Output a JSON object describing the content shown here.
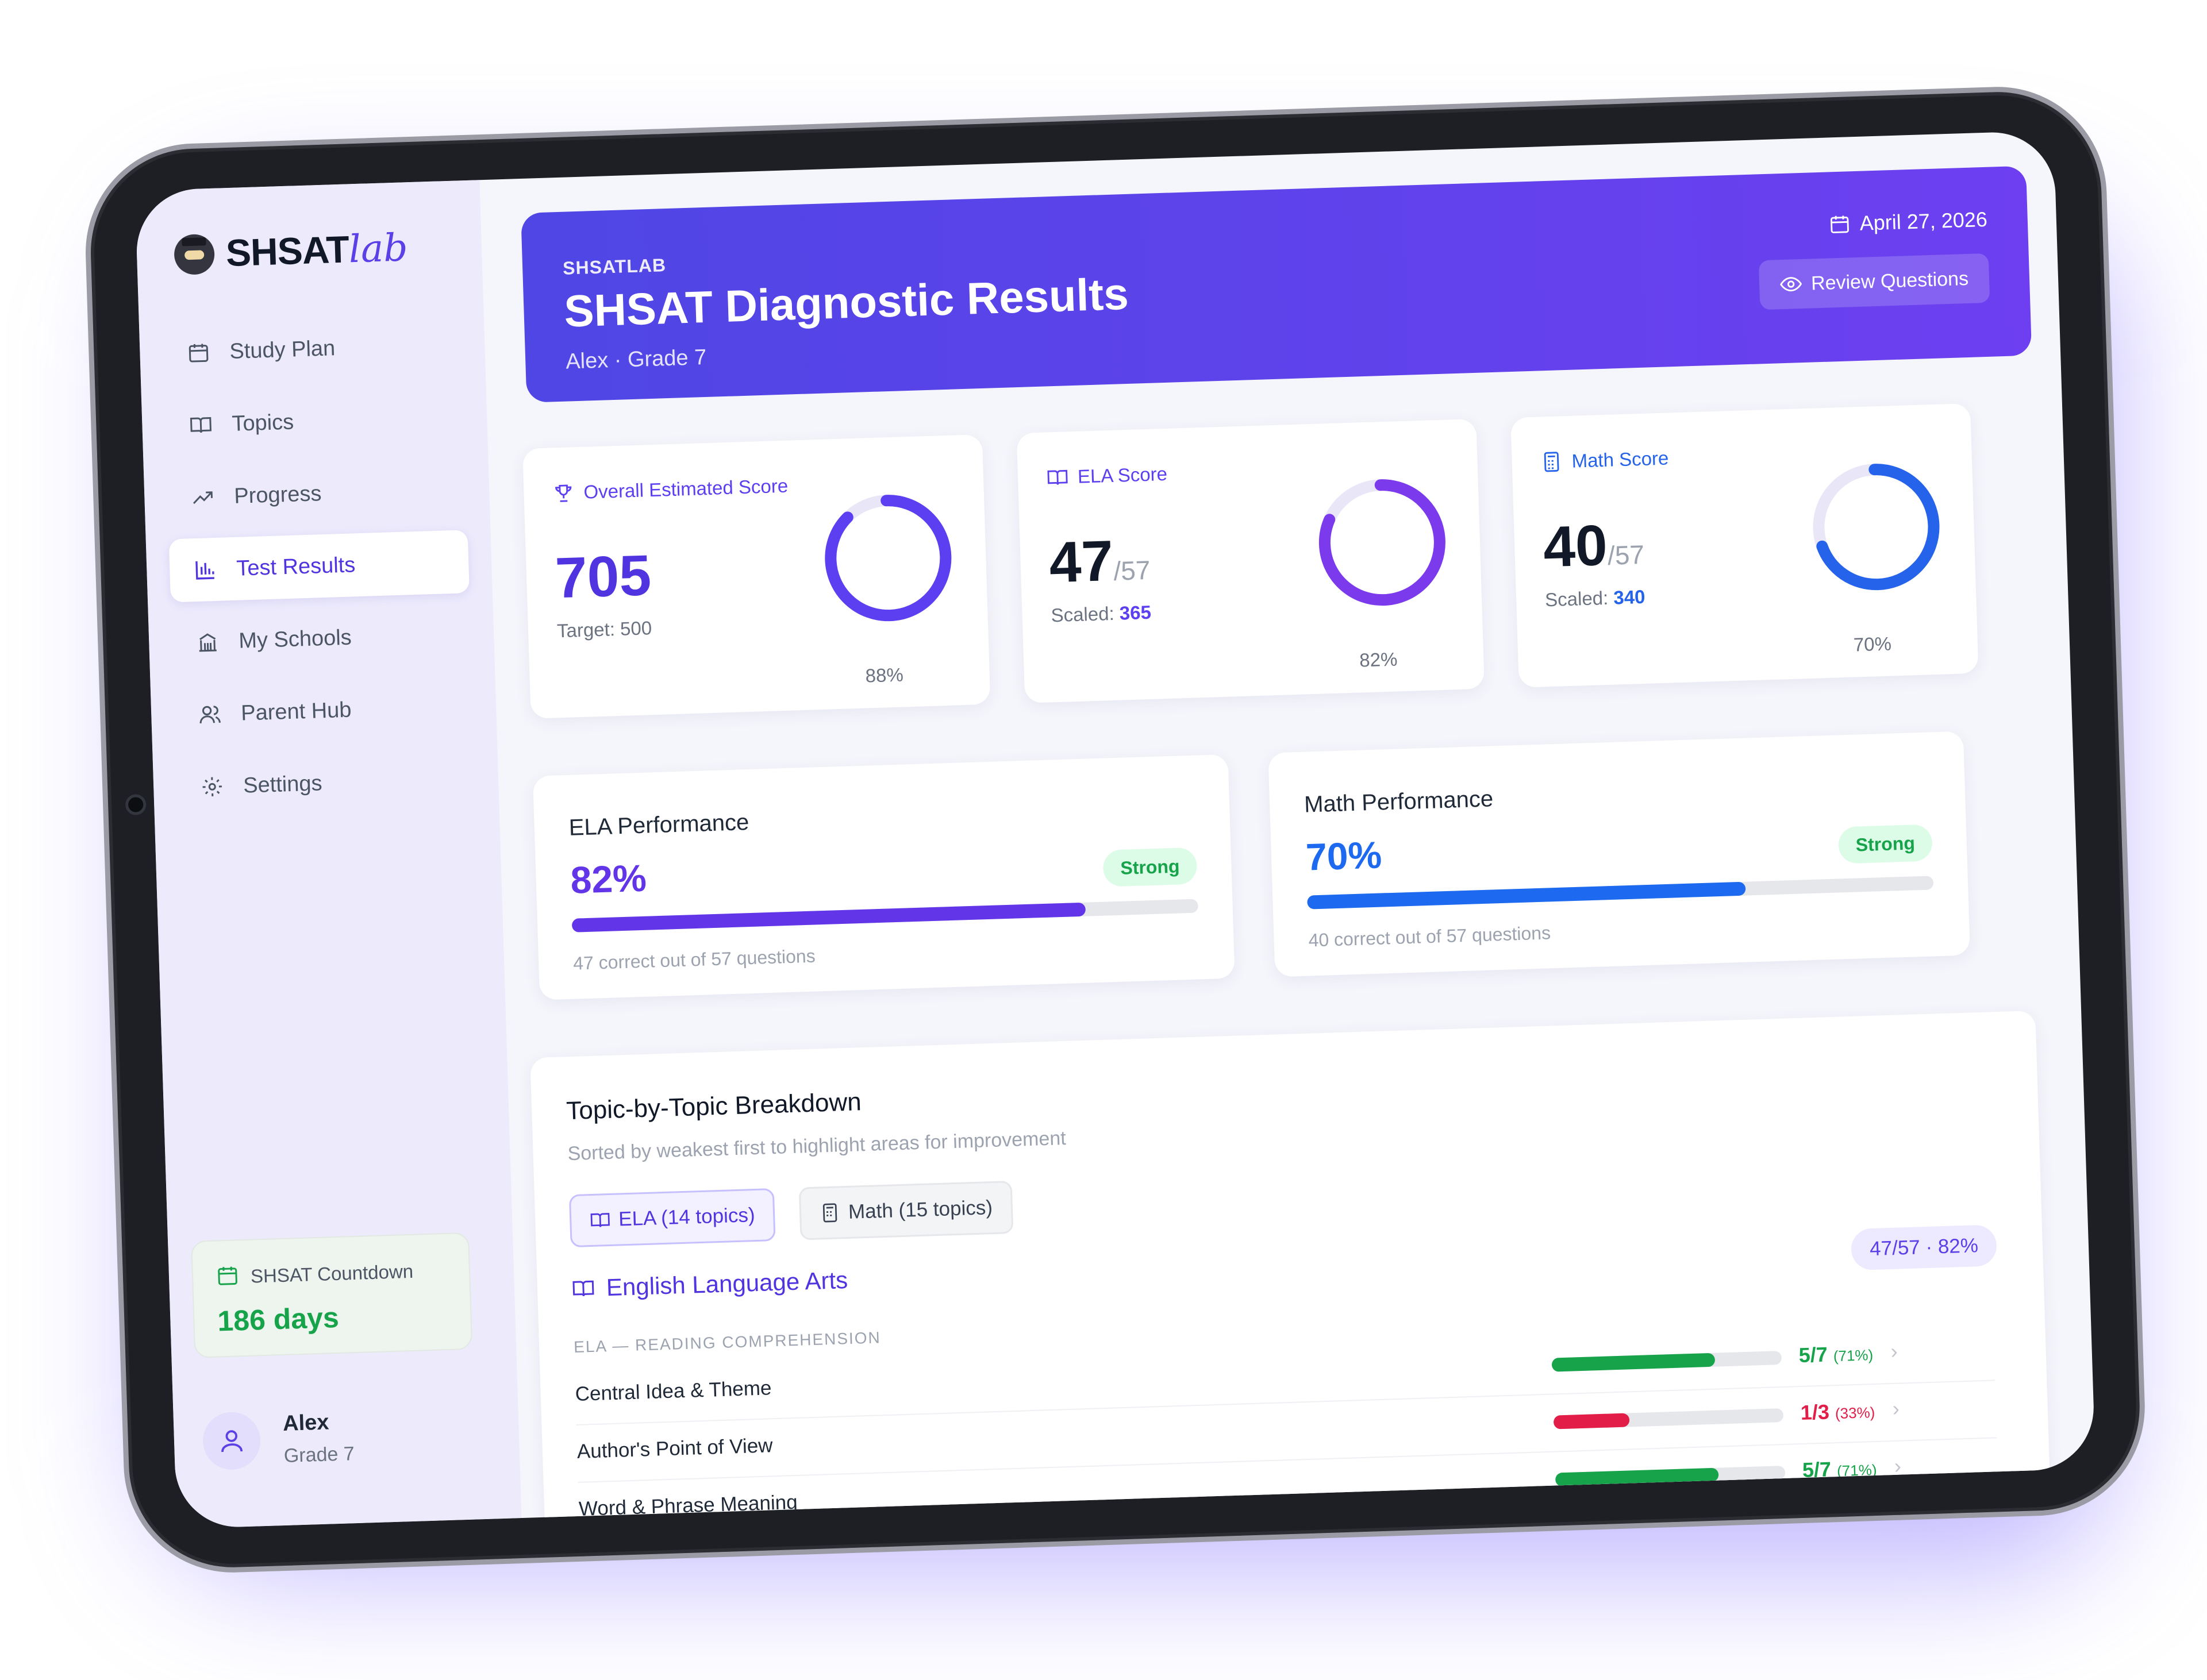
{
  "app": {
    "logo_text": "SHSAT",
    "logo_script": "lab"
  },
  "sidebar": {
    "items": [
      {
        "label": "Study Plan",
        "icon": "calendar-icon"
      },
      {
        "label": "Topics",
        "icon": "book-icon"
      },
      {
        "label": "Progress",
        "icon": "trend-icon"
      },
      {
        "label": "Test Results",
        "icon": "bar-chart-icon",
        "active": true
      },
      {
        "label": "My Schools",
        "icon": "school-icon"
      },
      {
        "label": "Parent Hub",
        "icon": "users-icon"
      },
      {
        "label": "Settings",
        "icon": "gear-icon"
      }
    ],
    "countdown": {
      "label": "SHSAT Countdown",
      "value": "186 days"
    },
    "user": {
      "name": "Alex",
      "grade": "Grade 7"
    }
  },
  "hero": {
    "kicker": "SHSATLAB",
    "title": "SHSAT Diagnostic Results",
    "subtitle": "Alex · Grade 7",
    "date": "April 27, 2026",
    "review_button": "Review Questions"
  },
  "scores": {
    "overall": {
      "title": "Overall Estimated Score",
      "value": "705",
      "foot_label": "Target:",
      "foot_value": "500",
      "pct": "88%",
      "fraction": 0.88,
      "color": "#5b3ff0"
    },
    "ela": {
      "title": "ELA Score",
      "value": "47",
      "out_of": "/57",
      "foot_label": "Scaled:",
      "foot_value": "365",
      "pct": "82%",
      "fraction": 0.82,
      "color": "#7c3aed"
    },
    "math": {
      "title": "Math Score",
      "value": "40",
      "out_of": "/57",
      "foot_label": "Scaled:",
      "foot_value": "340",
      "pct": "70%",
      "fraction": 0.7,
      "color": "#2563eb"
    }
  },
  "performance": {
    "ela": {
      "title": "ELA Performance",
      "pct": "82%",
      "fraction": 0.82,
      "badge": "Strong",
      "note": "47 correct out of 57 questions",
      "color": "#6236e8"
    },
    "math": {
      "title": "Math Performance",
      "pct": "70%",
      "fraction": 0.7,
      "badge": "Strong",
      "note": "40 correct out of 57 questions",
      "color": "#1d6af0"
    }
  },
  "breakdown": {
    "title": "Topic-by-Topic Breakdown",
    "subtitle": "Sorted by weakest first to highlight areas for improvement",
    "tabs": {
      "ela": "ELA (14 topics)",
      "math": "Math (15 topics)"
    },
    "section": {
      "title": "English Language Arts",
      "badge": "47/57 · 82%"
    },
    "category": "ELA — READING COMPREHENSION",
    "topics": [
      {
        "name": "Central Idea & Theme",
        "score": "5/7",
        "pct": "(71%)",
        "fraction": 0.71,
        "color": "#16a34a"
      },
      {
        "name": "Author's Point of View",
        "score": "1/3",
        "pct": "(33%)",
        "fraction": 0.33,
        "color": "#e11d48"
      },
      {
        "name": "Word & Phrase Meaning",
        "score": "5/7",
        "pct": "(71%)",
        "fraction": 0.71,
        "color": "#16a34a"
      }
    ]
  }
}
